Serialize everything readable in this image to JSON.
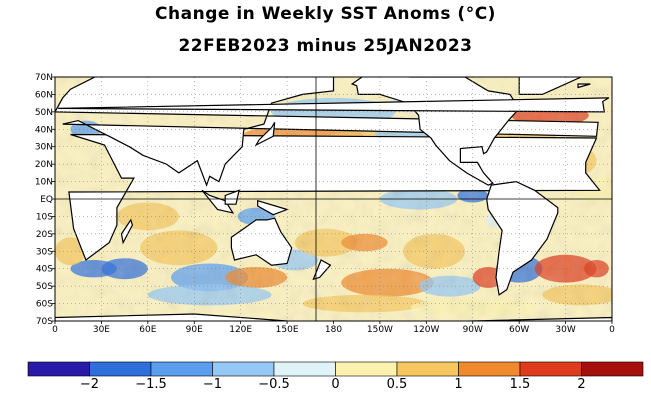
{
  "title_line1": "Change in Weekly SST Anoms (°C)",
  "title_line2": "22FEB2023 minus 25JAN2023",
  "lat_labels": [
    "70N",
    "60N",
    "50N",
    "40N",
    "30N",
    "20N",
    "10N",
    "EQ",
    "10S",
    "20S",
    "30S",
    "40S",
    "50S",
    "60S",
    "70S"
  ],
  "lon_labels": [
    "0",
    "30E",
    "60E",
    "90E",
    "120E",
    "150E",
    "180",
    "150W",
    "120W",
    "90W",
    "60W",
    "30W",
    "0"
  ],
  "colorbar": {
    "labels": [
      "−2",
      "−1.5",
      "−1",
      "−0.5",
      "0",
      "0.5",
      "1",
      "1.5",
      "2"
    ],
    "colors": [
      "#2a1aa8",
      "#2f6fdc",
      "#5a9ef0",
      "#96c8f5",
      "#dff3f9",
      "#fbf2b0",
      "#f6c75f",
      "#f08a2c",
      "#df3c1e",
      "#a5100d"
    ]
  },
  "ocean_base_color": "#ffffff"
}
